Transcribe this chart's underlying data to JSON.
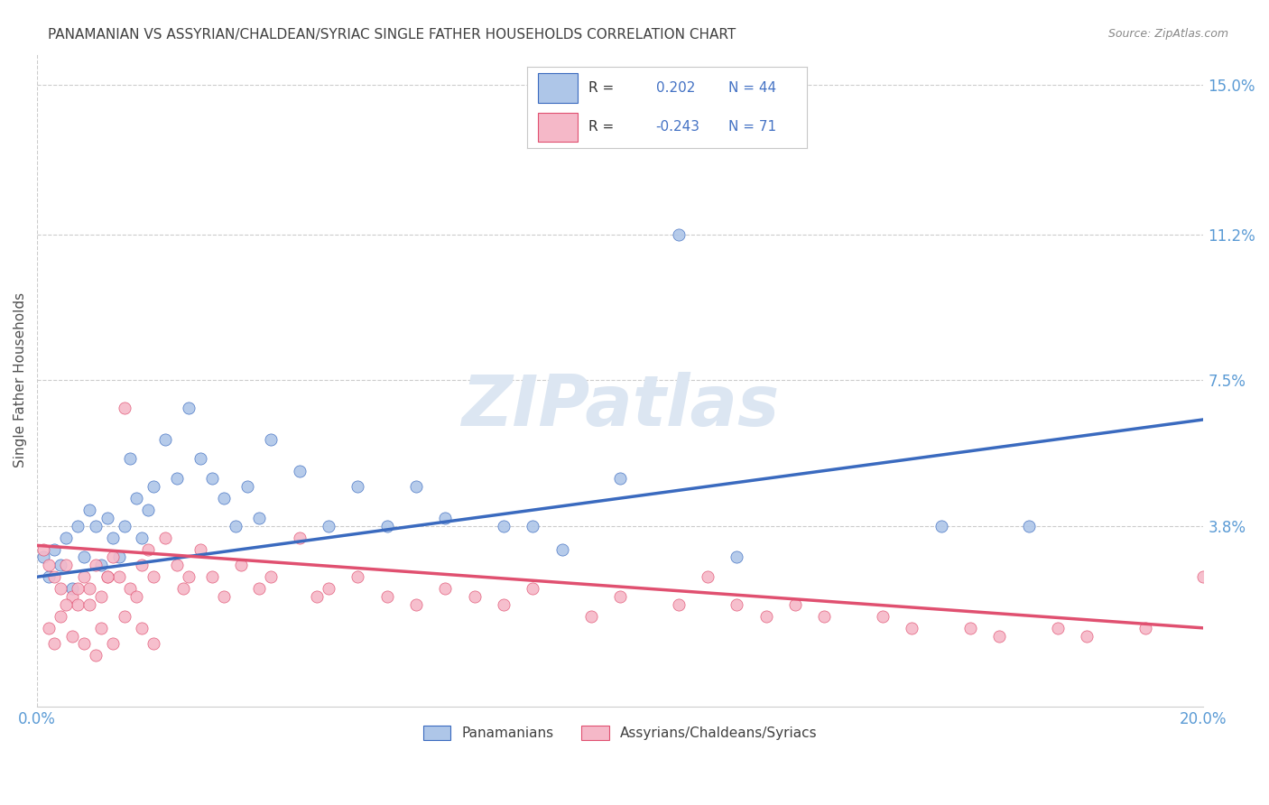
{
  "title": "PANAMANIAN VS ASSYRIAN/CHALDEAN/SYRIAC SINGLE FATHER HOUSEHOLDS CORRELATION CHART",
  "source": "Source: ZipAtlas.com",
  "ylabel": "Single Father Households",
  "xlim": [
    0,
    0.2
  ],
  "ylim": [
    -0.008,
    0.158
  ],
  "yticks": [
    0.038,
    0.075,
    0.112,
    0.15
  ],
  "ytick_labels": [
    "3.8%",
    "7.5%",
    "11.2%",
    "15.0%"
  ],
  "xticks": [
    0.0,
    0.05,
    0.1,
    0.15,
    0.2
  ],
  "xtick_labels": [
    "0.0%",
    "",
    "",
    "",
    "20.0%"
  ],
  "blue_color": "#aec6e8",
  "pink_color": "#f5b8c8",
  "blue_line_color": "#3a6abf",
  "pink_line_color": "#e05070",
  "title_color": "#404040",
  "source_color": "#888888",
  "axis_label_color": "#505050",
  "tick_color": "#5b9bd5",
  "grid_color": "#cccccc",
  "legend_r_color": "#4472c4",
  "watermark_color": "#dce6f2",
  "blue_line_x0": 0.0,
  "blue_line_y0": 0.025,
  "blue_line_x1": 0.2,
  "blue_line_y1": 0.065,
  "pink_line_x0": 0.0,
  "pink_line_y0": 0.033,
  "pink_line_x1": 0.2,
  "pink_line_y1": 0.012,
  "blue_x": [
    0.001,
    0.002,
    0.003,
    0.004,
    0.005,
    0.006,
    0.007,
    0.008,
    0.009,
    0.01,
    0.011,
    0.012,
    0.013,
    0.014,
    0.015,
    0.016,
    0.017,
    0.018,
    0.019,
    0.02,
    0.022,
    0.024,
    0.026,
    0.028,
    0.03,
    0.032,
    0.034,
    0.036,
    0.038,
    0.04,
    0.045,
    0.05,
    0.055,
    0.06,
    0.065,
    0.07,
    0.08,
    0.09,
    0.1,
    0.11,
    0.12,
    0.155,
    0.17,
    0.085
  ],
  "blue_y": [
    0.03,
    0.025,
    0.032,
    0.028,
    0.035,
    0.022,
    0.038,
    0.03,
    0.042,
    0.038,
    0.028,
    0.04,
    0.035,
    0.03,
    0.038,
    0.055,
    0.045,
    0.035,
    0.042,
    0.048,
    0.06,
    0.05,
    0.068,
    0.055,
    0.05,
    0.045,
    0.038,
    0.048,
    0.04,
    0.06,
    0.052,
    0.038,
    0.048,
    0.038,
    0.048,
    0.04,
    0.038,
    0.032,
    0.05,
    0.112,
    0.03,
    0.038,
    0.038,
    0.038
  ],
  "pink_x": [
    0.001,
    0.002,
    0.003,
    0.004,
    0.005,
    0.006,
    0.007,
    0.008,
    0.009,
    0.01,
    0.011,
    0.012,
    0.013,
    0.014,
    0.015,
    0.016,
    0.017,
    0.018,
    0.019,
    0.02,
    0.022,
    0.024,
    0.025,
    0.026,
    0.028,
    0.03,
    0.032,
    0.035,
    0.038,
    0.04,
    0.045,
    0.048,
    0.05,
    0.055,
    0.06,
    0.065,
    0.07,
    0.075,
    0.08,
    0.085,
    0.095,
    0.1,
    0.11,
    0.115,
    0.12,
    0.125,
    0.13,
    0.135,
    0.145,
    0.15,
    0.16,
    0.165,
    0.175,
    0.18,
    0.19,
    0.002,
    0.003,
    0.004,
    0.005,
    0.006,
    0.007,
    0.008,
    0.009,
    0.01,
    0.011,
    0.012,
    0.013,
    0.015,
    0.018,
    0.02,
    0.2
  ],
  "pink_y": [
    0.032,
    0.028,
    0.025,
    0.022,
    0.028,
    0.02,
    0.018,
    0.025,
    0.022,
    0.028,
    0.02,
    0.025,
    0.03,
    0.025,
    0.068,
    0.022,
    0.02,
    0.028,
    0.032,
    0.025,
    0.035,
    0.028,
    0.022,
    0.025,
    0.032,
    0.025,
    0.02,
    0.028,
    0.022,
    0.025,
    0.035,
    0.02,
    0.022,
    0.025,
    0.02,
    0.018,
    0.022,
    0.02,
    0.018,
    0.022,
    0.015,
    0.02,
    0.018,
    0.025,
    0.018,
    0.015,
    0.018,
    0.015,
    0.015,
    0.012,
    0.012,
    0.01,
    0.012,
    0.01,
    0.012,
    0.012,
    0.008,
    0.015,
    0.018,
    0.01,
    0.022,
    0.008,
    0.018,
    0.005,
    0.012,
    0.025,
    0.008,
    0.015,
    0.012,
    0.008,
    0.025
  ]
}
